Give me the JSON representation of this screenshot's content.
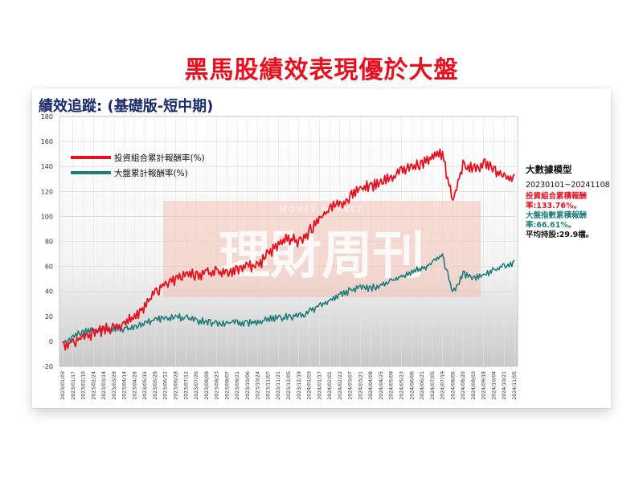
{
  "headline": "黑馬股績效表現優於大盤",
  "panel_title": "績效追蹤: (基礎版-短中期)",
  "watermark": {
    "big": "理財周刊",
    "small": "MONEY WEEKLY"
  },
  "model_panel": {
    "title": "大數據模型",
    "date_range": "20230101~20241108",
    "portfolio_line1": "投資組合累積報酬",
    "portfolio_line2": "率:133.76%。",
    "market_line1": "大盤指數累積報酬",
    "market_line2": "率:66.61%。",
    "holding": "平均持股:29.9檔。"
  },
  "colors": {
    "portfolio": "#e8101e",
    "market": "#1f7d7d",
    "headline": "#e8101e",
    "title": "#1a2a6e",
    "watermark": "#f2b9a6"
  },
  "chart_data": {
    "type": "line",
    "title": "績效追蹤: (基礎版-短中期)",
    "xlabel": "",
    "ylabel": "",
    "ylim": [
      -20,
      180
    ],
    "yticks": [
      -20,
      0,
      20,
      40,
      60,
      80,
      100,
      120,
      140,
      160,
      180
    ],
    "grid": true,
    "legend_position": "top-left",
    "x_ticks": [
      "2023/01/03",
      "2023/01/17",
      "2023/02/10",
      "2023/02/24",
      "2023/03/14",
      "2023/03/28",
      "2023/04/14",
      "2023/04/28",
      "2023/05/15",
      "2023/05/29",
      "2023/06/12",
      "2023/06/28",
      "2023/07/12",
      "2023/07/26",
      "2023/08/09",
      "2023/08/23",
      "2023/09/07",
      "2023/09/21",
      "2023/10/06",
      "2023/10/24",
      "2023/11/07",
      "2023/11/21",
      "2023/12/05",
      "2023/12/19",
      "2024/01/03",
      "2024/01/17",
      "2024/02/01",
      "2024/02/22",
      "2024/03/07",
      "2024/03/21",
      "2024/04/08",
      "2024/04/25",
      "2024/05/09",
      "2024/05/23",
      "2024/06/06",
      "2024/06/21",
      "2024/07/05",
      "2024/07/19",
      "2024/08/06",
      "2024/08/20",
      "2024/09/03",
      "2024/09/18",
      "2024/10/04",
      "2024/10/21",
      "2024/11/05"
    ],
    "series": [
      {
        "name": "投資組合累計報酬率(%)",
        "values": [
          0,
          2,
          6,
          9,
          12,
          13,
          16,
          22,
          31,
          42,
          48,
          52,
          55,
          56,
          57,
          58,
          57,
          60,
          62,
          63,
          72,
          80,
          85,
          82,
          90,
          100,
          108,
          112,
          118,
          124,
          127,
          130,
          133,
          140,
          142,
          145,
          150,
          152,
          113,
          145,
          140,
          145,
          140,
          135,
          134
        ]
      },
      {
        "name": "大盤累計報酬率(%)",
        "values": [
          0,
          5,
          9,
          10,
          11,
          12,
          11,
          13,
          16,
          19,
          20,
          21,
          20,
          18,
          17,
          16,
          16,
          17,
          16,
          17,
          19,
          20,
          21,
          22,
          25,
          30,
          33,
          38,
          42,
          45,
          44,
          46,
          50,
          53,
          57,
          60,
          64,
          70,
          40,
          56,
          52,
          54,
          58,
          62,
          65
        ]
      }
    ]
  }
}
